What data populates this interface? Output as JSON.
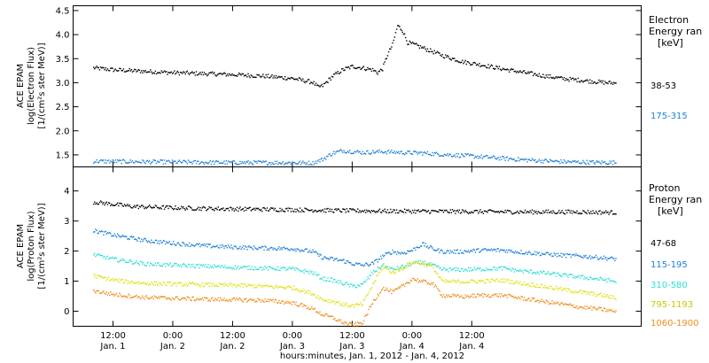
{
  "chart_data": [
    {
      "type": "scatter",
      "panel": "electron",
      "ylabel_lines": [
        "ACE EPAM",
        "log(Electron Flux)",
        "[1/(cm²s ster MeV)]"
      ],
      "yticks": [
        "1.5",
        "2.0",
        "2.5",
        "3.0",
        "3.5",
        "4.0",
        "4.5"
      ],
      "ylim": [
        1.25,
        4.6
      ],
      "legend_title_lines": [
        "Electron",
        "Energy ran",
        "[keV]"
      ],
      "series": [
        {
          "name": "38-53",
          "color": "#000000",
          "points": [
            [
              2,
              3.32
            ],
            [
              6,
              3.28
            ],
            [
              12,
              3.25
            ],
            [
              18,
              3.22
            ],
            [
              24,
              3.2
            ],
            [
              30,
              3.18
            ],
            [
              36,
              3.15
            ],
            [
              42,
              3.1
            ],
            [
              46,
              3.02
            ],
            [
              47,
              2.92
            ],
            [
              48,
              2.95
            ],
            [
              50,
              3.15
            ],
            [
              52,
              3.28
            ],
            [
              54,
              3.35
            ],
            [
              56,
              3.32
            ],
            [
              58,
              3.28
            ],
            [
              59,
              3.22
            ],
            [
              60,
              3.3
            ],
            [
              61,
              3.6
            ],
            [
              62,
              3.8
            ],
            [
              63,
              4.2
            ],
            [
              64,
              4.1
            ],
            [
              65,
              3.85
            ],
            [
              67,
              3.78
            ],
            [
              69,
              3.7
            ],
            [
              72,
              3.58
            ],
            [
              76,
              3.45
            ],
            [
              80,
              3.38
            ],
            [
              84,
              3.3
            ],
            [
              88,
              3.23
            ],
            [
              92,
              3.16
            ],
            [
              96,
              3.1
            ],
            [
              100,
              3.06
            ],
            [
              104,
              3.02
            ],
            [
              107,
              3.0
            ]
          ]
        },
        {
          "name": "175-315",
          "color": "#1f7fd6",
          "points": [
            [
              2,
              1.38
            ],
            [
              10,
              1.37
            ],
            [
              20,
              1.36
            ],
            [
              30,
              1.35
            ],
            [
              40,
              1.35
            ],
            [
              46,
              1.34
            ],
            [
              48,
              1.42
            ],
            [
              50,
              1.55
            ],
            [
              52,
              1.6
            ],
            [
              56,
              1.56
            ],
            [
              60,
              1.58
            ],
            [
              64,
              1.56
            ],
            [
              68,
              1.55
            ],
            [
              72,
              1.52
            ],
            [
              76,
              1.5
            ],
            [
              80,
              1.47
            ],
            [
              84,
              1.44
            ],
            [
              88,
              1.41
            ],
            [
              92,
              1.39
            ],
            [
              96,
              1.37
            ],
            [
              100,
              1.36
            ],
            [
              107,
              1.35
            ]
          ]
        }
      ]
    },
    {
      "type": "scatter",
      "panel": "proton",
      "ylabel_lines": [
        "ACE EPAM",
        "log(Proton Flux)",
        "[1/(cm²s ster MeV)]"
      ],
      "yticks": [
        "0",
        "1",
        "2",
        "3",
        "4"
      ],
      "ylim": [
        -0.5,
        4.8
      ],
      "legend_title_lines": [
        "Proton",
        "Energy ran",
        "[keV]"
      ],
      "series": [
        {
          "name": "47-68",
          "color": "#000000",
          "points": [
            [
              2,
              3.65
            ],
            [
              10,
              3.5
            ],
            [
              20,
              3.45
            ],
            [
              30,
              3.42
            ],
            [
              40,
              3.4
            ],
            [
              50,
              3.37
            ],
            [
              60,
              3.35
            ],
            [
              70,
              3.34
            ],
            [
              80,
              3.33
            ],
            [
              90,
              3.32
            ],
            [
              100,
              3.32
            ],
            [
              107,
              3.3
            ]
          ]
        },
        {
          "name": "115-195",
          "color": "#1f7fd6",
          "points": [
            [
              2,
              2.7
            ],
            [
              6,
              2.55
            ],
            [
              12,
              2.38
            ],
            [
              18,
              2.28
            ],
            [
              24,
              2.2
            ],
            [
              30,
              2.15
            ],
            [
              36,
              2.12
            ],
            [
              42,
              2.1
            ],
            [
              46,
              2.0
            ],
            [
              48,
              1.8
            ],
            [
              50,
              1.75
            ],
            [
              52,
              1.7
            ],
            [
              54,
              1.6
            ],
            [
              56,
              1.55
            ],
            [
              58,
              1.6
            ],
            [
              60,
              1.85
            ],
            [
              62,
              2.0
            ],
            [
              64,
              1.95
            ],
            [
              66,
              2.05
            ],
            [
              68,
              2.25
            ],
            [
              70,
              2.1
            ],
            [
              72,
              2.0
            ],
            [
              76,
              2.0
            ],
            [
              80,
              2.05
            ],
            [
              84,
              2.05
            ],
            [
              88,
              1.98
            ],
            [
              92,
              1.93
            ],
            [
              96,
              1.88
            ],
            [
              100,
              1.85
            ],
            [
              104,
              1.8
            ],
            [
              107,
              1.75
            ]
          ]
        },
        {
          "name": "310-580",
          "color": "#2de0d3",
          "points": [
            [
              2,
              1.9
            ],
            [
              6,
              1.75
            ],
            [
              12,
              1.6
            ],
            [
              18,
              1.55
            ],
            [
              24,
              1.52
            ],
            [
              30,
              1.48
            ],
            [
              36,
              1.45
            ],
            [
              42,
              1.42
            ],
            [
              46,
              1.3
            ],
            [
              48,
              1.1
            ],
            [
              50,
              1.05
            ],
            [
              52,
              0.95
            ],
            [
              54,
              0.85
            ],
            [
              56,
              0.9
            ],
            [
              58,
              1.3
            ],
            [
              60,
              1.55
            ],
            [
              62,
              1.4
            ],
            [
              64,
              1.5
            ],
            [
              66,
              1.6
            ],
            [
              68,
              1.65
            ],
            [
              70,
              1.55
            ],
            [
              72,
              1.4
            ],
            [
              76,
              1.4
            ],
            [
              80,
              1.42
            ],
            [
              84,
              1.45
            ],
            [
              88,
              1.35
            ],
            [
              92,
              1.3
            ],
            [
              96,
              1.22
            ],
            [
              100,
              1.15
            ],
            [
              104,
              1.08
            ],
            [
              107,
              1.0
            ]
          ]
        },
        {
          "name": "795-1193",
          "color": "#e0e012",
          "points": [
            [
              2,
              1.2
            ],
            [
              6,
              1.05
            ],
            [
              12,
              0.95
            ],
            [
              18,
              0.92
            ],
            [
              24,
              0.9
            ],
            [
              30,
              0.88
            ],
            [
              36,
              0.85
            ],
            [
              42,
              0.8
            ],
            [
              46,
              0.6
            ],
            [
              48,
              0.4
            ],
            [
              50,
              0.35
            ],
            [
              52,
              0.25
            ],
            [
              54,
              0.2
            ],
            [
              56,
              0.25
            ],
            [
              58,
              0.9
            ],
            [
              60,
              1.5
            ],
            [
              62,
              1.3
            ],
            [
              64,
              1.45
            ],
            [
              66,
              1.65
            ],
            [
              68,
              1.6
            ],
            [
              70,
              1.5
            ],
            [
              72,
              1.0
            ],
            [
              76,
              1.0
            ],
            [
              80,
              1.02
            ],
            [
              84,
              1.05
            ],
            [
              88,
              0.95
            ],
            [
              92,
              0.85
            ],
            [
              96,
              0.75
            ],
            [
              100,
              0.65
            ],
            [
              104,
              0.55
            ],
            [
              107,
              0.45
            ]
          ]
        },
        {
          "name": "1060-1900",
          "color": "#f08c1a",
          "points": [
            [
              2,
              0.7
            ],
            [
              6,
              0.58
            ],
            [
              12,
              0.48
            ],
            [
              18,
              0.45
            ],
            [
              24,
              0.42
            ],
            [
              30,
              0.4
            ],
            [
              36,
              0.38
            ],
            [
              42,
              0.3
            ],
            [
              46,
              0.1
            ],
            [
              48,
              -0.1
            ],
            [
              50,
              -0.2
            ],
            [
              52,
              -0.35
            ],
            [
              54,
              -0.45
            ],
            [
              56,
              -0.35
            ],
            [
              58,
              0.3
            ],
            [
              60,
              0.8
            ],
            [
              62,
              0.65
            ],
            [
              64,
              0.85
            ],
            [
              66,
              1.1
            ],
            [
              68,
              1.0
            ],
            [
              70,
              0.95
            ],
            [
              72,
              0.55
            ],
            [
              76,
              0.5
            ],
            [
              80,
              0.55
            ],
            [
              84,
              0.55
            ],
            [
              88,
              0.45
            ],
            [
              92,
              0.35
            ],
            [
              96,
              0.25
            ],
            [
              100,
              0.15
            ],
            [
              104,
              0.08
            ],
            [
              107,
              0.0
            ]
          ]
        }
      ]
    }
  ],
  "xaxis": {
    "xlim": [
      -2,
      112
    ],
    "major_ticks": [
      {
        "x": 6,
        "time": "12:00",
        "day": "Jan. 1"
      },
      {
        "x": 18,
        "time": "0:00",
        "day": "Jan. 2"
      },
      {
        "x": 30,
        "time": "12:00",
        "day": "Jan. 2"
      },
      {
        "x": 42,
        "time": "0:00",
        "day": "Jan. 3"
      },
      {
        "x": 54,
        "time": "12:00",
        "day": "Jan. 3"
      },
      {
        "x": 66,
        "time": "0:00",
        "day": "Jan. 4"
      },
      {
        "x": 78,
        "time": "12:00",
        "day": "Jan. 4"
      }
    ],
    "xlabel": "hours:minutes, Jan.  1, 2012 - Jan.  4, 2012"
  }
}
